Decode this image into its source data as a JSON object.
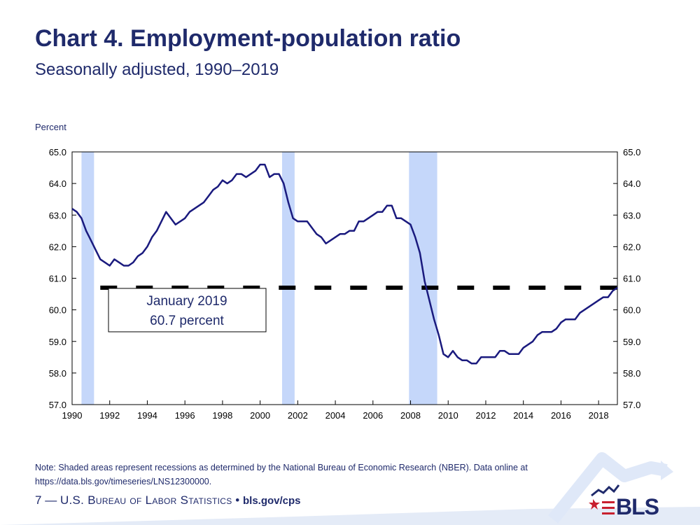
{
  "header": {
    "title": "Chart 4. Employment-population ratio",
    "subtitle": "Seasonally adjusted, 1990–2019"
  },
  "annotation": {
    "line1": "January 2019",
    "line2": "60.7 percent"
  },
  "note": "Note: Shaded areas represent recessions as determined by the National Bureau of Economic Research (NBER).  Data online at https://data.bls.gov/timeseries/LNS12300000.",
  "footer": {
    "page_number": "7",
    "dash": "—",
    "agency": "U.S. Bureau of Labor Statistics",
    "bullet": "•",
    "url": "bls.gov/cps"
  },
  "logo": {
    "text": "BLS"
  },
  "chart_data": {
    "type": "line",
    "title": "Chart 4. Employment-population ratio",
    "subtitle": "Seasonally adjusted, 1990–2019",
    "ylabel": "Percent",
    "xlabel": "",
    "xlim": [
      1990,
      2019
    ],
    "ylim": [
      57.0,
      65.0
    ],
    "ytick_labels": [
      "57.0",
      "58.0",
      "59.0",
      "60.0",
      "61.0",
      "62.0",
      "63.0",
      "64.0",
      "65.0"
    ],
    "xtick_labels": [
      "1990",
      "1992",
      "1994",
      "1996",
      "1998",
      "2000",
      "2002",
      "2004",
      "2006",
      "2008",
      "2010",
      "2012",
      "2014",
      "2016",
      "2018"
    ],
    "dual_y_axis": true,
    "grid": false,
    "line_color": "#1a1a7e",
    "recession_color": "#c5d7fa",
    "recessions": [
      {
        "start": "1990-07",
        "end": "1991-03"
      },
      {
        "start": "2001-03",
        "end": "2001-11"
      },
      {
        "start": "2007-12",
        "end": "2009-06"
      }
    ],
    "reference_line": {
      "value": 60.7,
      "style": "dashed",
      "color": "#000000",
      "label": "January 2019 60.7 percent"
    },
    "series": [
      {
        "x": [
          1990.0,
          1990.25,
          1990.5,
          1990.75,
          1991.0,
          1991.25,
          1991.5,
          1991.75,
          1992.0,
          1992.25,
          1992.5,
          1992.75,
          1993.0,
          1993.25,
          1993.5,
          1993.75,
          1994.0,
          1994.25,
          1994.5,
          1994.75,
          1995.0,
          1995.25,
          1995.5,
          1995.75,
          1996.0,
          1996.25,
          1996.5,
          1996.75,
          1997.0,
          1997.25,
          1997.5,
          1997.75,
          1998.0,
          1998.25,
          1998.5,
          1998.75,
          1999.0,
          1999.25,
          1999.5,
          1999.75,
          2000.0,
          2000.25,
          2000.5,
          2000.75,
          2001.0,
          2001.25,
          2001.5,
          2001.75,
          2002.0,
          2002.25,
          2002.5,
          2002.75,
          2003.0,
          2003.25,
          2003.5,
          2003.75,
          2004.0,
          2004.25,
          2004.5,
          2004.75,
          2005.0,
          2005.25,
          2005.5,
          2005.75,
          2006.0,
          2006.25,
          2006.5,
          2006.75,
          2007.0,
          2007.25,
          2007.5,
          2007.75,
          2008.0,
          2008.25,
          2008.5,
          2008.75,
          2009.0,
          2009.25,
          2009.5,
          2009.75,
          2010.0,
          2010.25,
          2010.5,
          2010.75,
          2011.0,
          2011.25,
          2011.5,
          2011.75,
          2012.0,
          2012.25,
          2012.5,
          2012.75,
          2013.0,
          2013.25,
          2013.5,
          2013.75,
          2014.0,
          2014.25,
          2014.5,
          2014.75,
          2015.0,
          2015.25,
          2015.5,
          2015.75,
          2016.0,
          2016.25,
          2016.5,
          2016.75,
          2017.0,
          2017.25,
          2017.5,
          2017.75,
          2018.0,
          2018.25,
          2018.5,
          2018.75,
          2019.0
        ],
        "values": [
          63.2,
          63.1,
          62.9,
          62.5,
          62.2,
          61.9,
          61.6,
          61.5,
          61.4,
          61.6,
          61.5,
          61.4,
          61.4,
          61.5,
          61.7,
          61.8,
          62.0,
          62.3,
          62.5,
          62.8,
          63.1,
          62.9,
          62.7,
          62.8,
          62.9,
          63.1,
          63.2,
          63.3,
          63.4,
          63.6,
          63.8,
          63.9,
          64.1,
          64.0,
          64.1,
          64.3,
          64.3,
          64.2,
          64.3,
          64.4,
          64.6,
          64.6,
          64.2,
          64.3,
          64.3,
          64.0,
          63.4,
          62.9,
          62.8,
          62.8,
          62.8,
          62.6,
          62.4,
          62.3,
          62.1,
          62.2,
          62.3,
          62.4,
          62.4,
          62.5,
          62.5,
          62.8,
          62.8,
          62.9,
          63.0,
          63.1,
          63.1,
          63.3,
          63.3,
          62.9,
          62.9,
          62.8,
          62.7,
          62.3,
          61.8,
          60.9,
          60.3,
          59.7,
          59.2,
          58.6,
          58.5,
          58.7,
          58.5,
          58.4,
          58.4,
          58.3,
          58.3,
          58.5,
          58.5,
          58.5,
          58.5,
          58.7,
          58.7,
          58.6,
          58.6,
          58.6,
          58.8,
          58.9,
          59.0,
          59.2,
          59.3,
          59.3,
          59.3,
          59.4,
          59.6,
          59.7,
          59.7,
          59.7,
          59.9,
          60.0,
          60.1,
          60.2,
          60.3,
          60.4,
          60.4,
          60.6,
          60.7
        ]
      }
    ]
  }
}
